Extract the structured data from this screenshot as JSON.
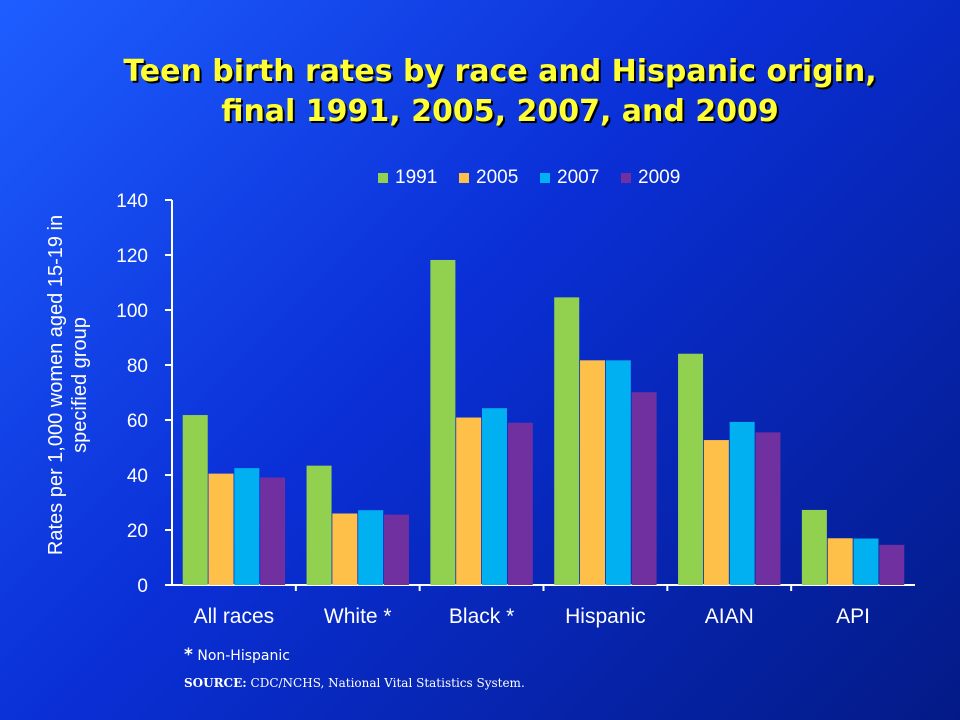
{
  "slide": {
    "title_line1": "Teen birth rates by race and Hispanic origin,",
    "title_line2": "final 1991, 2005, 2007, and 2009",
    "footnote_star": "*",
    "footnote_text": "Non-Hispanic",
    "source_label": "SOURCE:",
    "source_text": "CDC/NCHS, National Vital Statistics System."
  },
  "colors": {
    "1991": "#92d050",
    "2005": "#ffc04a",
    "2007": "#00b0f0",
    "2009": "#7030a0"
  },
  "chart_data": {
    "type": "bar",
    "title": "",
    "ylabel_line1": "Rates per 1,000 women aged 15-19 in",
    "ylabel_line2": "specified group",
    "xlabel": "",
    "ylim": [
      0,
      140
    ],
    "yticks": [
      0,
      20,
      40,
      60,
      80,
      100,
      120,
      140
    ],
    "grid": false,
    "legend": "top",
    "categories": [
      "All races",
      "White *",
      "Black *",
      "Hispanic",
      "AIAN",
      "API"
    ],
    "series": [
      {
        "name": "1991",
        "values": [
          61.8,
          43.4,
          118.2,
          104.6,
          84.1,
          27.3
        ]
      },
      {
        "name": "2005",
        "values": [
          40.5,
          26.0,
          60.9,
          81.7,
          52.7,
          17.0
        ]
      },
      {
        "name": "2007",
        "values": [
          42.5,
          27.2,
          64.3,
          81.7,
          59.3,
          16.9
        ]
      },
      {
        "name": "2009",
        "values": [
          39.1,
          25.6,
          59.0,
          70.1,
          55.5,
          14.6
        ]
      }
    ]
  }
}
